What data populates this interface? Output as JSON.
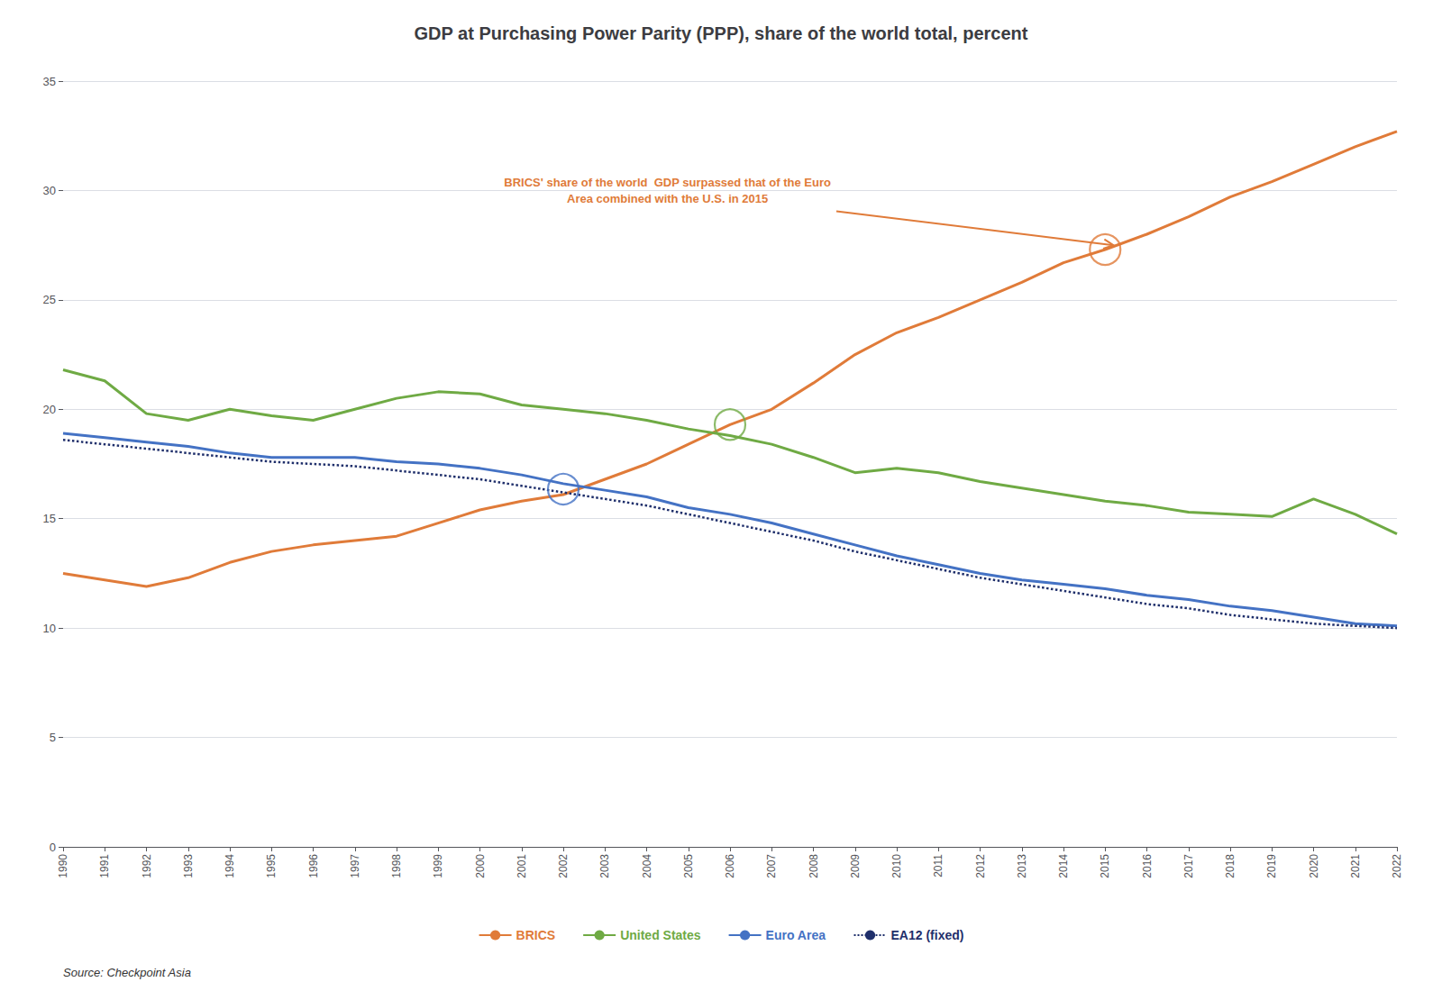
{
  "chart_data": {
    "type": "line",
    "title": "GDP at Purchasing Power Parity (PPP), share of the world total, percent",
    "x": [
      1990,
      1991,
      1992,
      1993,
      1994,
      1995,
      1996,
      1997,
      1998,
      1999,
      2000,
      2001,
      2002,
      2003,
      2004,
      2005,
      2006,
      2007,
      2008,
      2009,
      2010,
      2011,
      2012,
      2013,
      2014,
      2015,
      2016,
      2017,
      2018,
      2019,
      2020,
      2021,
      2022
    ],
    "xlim": [
      1990,
      2022
    ],
    "xticks": [
      1990,
      1991,
      1992,
      1993,
      1994,
      1995,
      1996,
      1997,
      1998,
      1999,
      2000,
      2001,
      2002,
      2003,
      2004,
      2005,
      2006,
      2007,
      2008,
      2009,
      2010,
      2011,
      2012,
      2013,
      2014,
      2015,
      2016,
      2017,
      2018,
      2019,
      2020,
      2021,
      2022
    ],
    "ylim": [
      0,
      35
    ],
    "yticks": [
      0,
      5,
      10,
      15,
      20,
      25,
      30,
      35
    ],
    "grid": true,
    "legend": "bottom",
    "series": [
      {
        "name": "BRICS",
        "color": "#E07B39",
        "line_style": "solid",
        "values": [
          12.5,
          12.2,
          11.9,
          12.3,
          13.0,
          13.5,
          13.8,
          14.0,
          14.2,
          14.8,
          15.4,
          15.8,
          16.1,
          16.8,
          17.5,
          18.4,
          19.3,
          20.0,
          21.2,
          22.5,
          23.5,
          24.2,
          25.0,
          25.8,
          26.7,
          27.3,
          28.0,
          28.8,
          29.7,
          30.4,
          31.2,
          32.0,
          32.7
        ]
      },
      {
        "name": "United States",
        "color": "#6FAA44",
        "line_style": "solid",
        "values": [
          21.8,
          21.3,
          19.8,
          19.5,
          20.0,
          19.7,
          19.5,
          20.0,
          20.5,
          20.8,
          20.7,
          20.2,
          20.0,
          19.8,
          19.5,
          19.1,
          18.8,
          18.4,
          17.8,
          17.1,
          17.3,
          17.1,
          16.7,
          16.4,
          16.1,
          15.8,
          15.6,
          15.3,
          15.2,
          15.1,
          15.9,
          15.2,
          14.3
        ]
      },
      {
        "name": "Euro Area",
        "color": "#4472C4",
        "line_style": "solid",
        "values": [
          18.9,
          18.7,
          18.5,
          18.3,
          18.0,
          17.8,
          17.8,
          17.8,
          17.6,
          17.5,
          17.3,
          17.0,
          16.6,
          16.3,
          16.0,
          15.5,
          15.2,
          14.8,
          14.3,
          13.8,
          13.3,
          12.9,
          12.5,
          12.2,
          12.0,
          11.8,
          11.5,
          11.3,
          11.0,
          10.8,
          10.5,
          10.2,
          10.1
        ]
      },
      {
        "name": "EA12 (fixed)",
        "color": "#1F2F6B",
        "line_style": "dotted",
        "values": [
          18.6,
          18.4,
          18.2,
          18.0,
          17.8,
          17.6,
          17.5,
          17.4,
          17.2,
          17.0,
          16.8,
          16.5,
          16.2,
          15.9,
          15.6,
          15.2,
          14.8,
          14.4,
          14.0,
          13.5,
          13.1,
          12.7,
          12.3,
          12.0,
          11.7,
          11.4,
          11.1,
          10.9,
          10.6,
          10.4,
          10.2,
          10.1,
          10.0
        ]
      }
    ],
    "circles": [
      {
        "x": 2002,
        "y": 16.35,
        "color": "#4472C4"
      },
      {
        "x": 2006,
        "y": 19.3,
        "color": "#6FAA44"
      },
      {
        "x": 2015,
        "y": 27.3,
        "color": "#E07B39"
      }
    ],
    "annotations": [
      {
        "text": "BRICS' share of the world  GDP surpassed that of the Euro\nArea combined with the U.S. in 2015",
        "x": 2004.5,
        "y": 30.0,
        "arrow_x": 2015.2,
        "arrow_y": 27.5,
        "color": "#E07B39"
      }
    ],
    "source": "Source: Checkpoint Asia"
  }
}
